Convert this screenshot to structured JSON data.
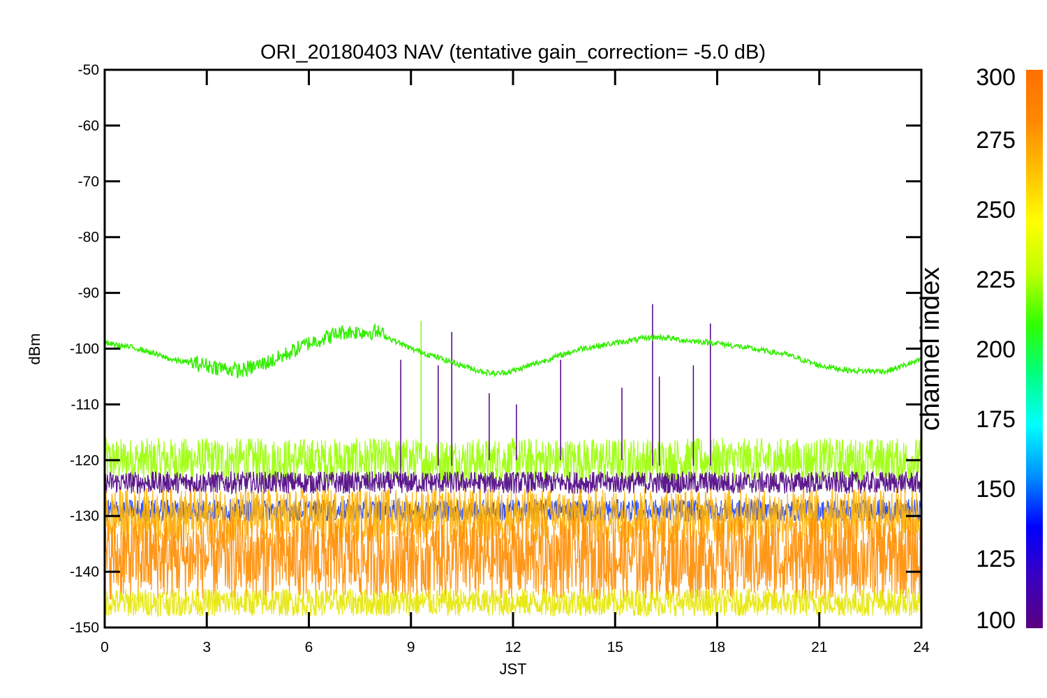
{
  "chart_data": {
    "type": "line",
    "title": "ORI_20180403 NAV (tentative gain_correction= -5.0 dB)",
    "xlabel": "JST",
    "ylabel": "dBm",
    "xlim": [
      0,
      24
    ],
    "ylim": [
      -150,
      -50
    ],
    "x_ticks": [
      0,
      3,
      6,
      9,
      12,
      15,
      18,
      21,
      24
    ],
    "y_ticks": [
      -50,
      -60,
      -70,
      -80,
      -90,
      -100,
      -110,
      -120,
      -130,
      -140,
      -150
    ],
    "grid": false,
    "colorbar": {
      "label": "channel index",
      "range": [
        100,
        300
      ],
      "ticks": [
        300,
        275,
        250,
        225,
        200,
        175,
        150,
        125,
        100
      ],
      "colormap": [
        "#5a0080",
        "#3a00c0",
        "#0000ff",
        "#0090ff",
        "#00ffff",
        "#00ff80",
        "#30ff00",
        "#c0ff00",
        "#ffff00",
        "#ffc000",
        "#ff8800",
        "#ff7000"
      ]
    },
    "series": [
      {
        "channel": 240,
        "color": "#33ee00",
        "x": [
          0,
          1,
          2,
          3,
          4,
          5,
          6,
          7,
          8,
          9,
          10,
          11,
          11.5,
          12,
          13,
          14,
          15,
          16,
          16.5,
          17,
          18,
          19,
          20,
          21,
          22,
          23,
          24
        ],
        "y": [
          -99,
          -100,
          -102,
          -103,
          -104,
          -102,
          -99,
          -97,
          -97,
          -100,
          -102,
          -104,
          -104.5,
          -104,
          -102,
          -100,
          -99,
          -98,
          -98,
          -98.5,
          -99,
          -100,
          -101,
          -103,
          -104,
          -104,
          -102
        ]
      },
      {
        "channel": 260,
        "color": "#99ff00",
        "band": [
          -124,
          -116
        ],
        "x": [
          0,
          24
        ]
      },
      {
        "channel": 110,
        "color": "#4b0082",
        "band": [
          -126,
          -122
        ],
        "x": [
          0,
          24
        ]
      },
      {
        "channel": 140,
        "color": "#1840ff",
        "band": [
          -131,
          -127
        ],
        "x": [
          0,
          24
        ]
      },
      {
        "channel": 280,
        "color": "#ffb000",
        "band": [
          -135,
          -125
        ],
        "x": [
          0,
          24
        ]
      },
      {
        "channel": 295,
        "color": "#ff8c00",
        "band": [
          -145,
          -130
        ],
        "x": [
          0,
          24
        ]
      },
      {
        "channel": 270,
        "color": "#e6e600",
        "band": [
          -148,
          -143
        ],
        "x": [
          0,
          24
        ]
      }
    ],
    "spikes": [
      {
        "x": 8.7,
        "top": -102,
        "bottom": -125,
        "color": "#4b0082"
      },
      {
        "x": 9.3,
        "top": -95,
        "bottom": -120,
        "color": "#7fff00"
      },
      {
        "x": 9.8,
        "top": -103,
        "bottom": -121,
        "color": "#4b0082"
      },
      {
        "x": 10.2,
        "top": -97,
        "bottom": -121,
        "color": "#4b0082"
      },
      {
        "x": 11.3,
        "top": -108,
        "bottom": -120,
        "color": "#4b0082"
      },
      {
        "x": 12.1,
        "top": -110,
        "bottom": -120,
        "color": "#4b0082"
      },
      {
        "x": 13.4,
        "top": -102,
        "bottom": -120,
        "color": "#4b0082"
      },
      {
        "x": 15.2,
        "top": -107,
        "bottom": -120,
        "color": "#4b0082"
      },
      {
        "x": 16.1,
        "top": -92,
        "bottom": -121,
        "color": "#4b0082"
      },
      {
        "x": 16.3,
        "top": -105,
        "bottom": -121,
        "color": "#4b0082"
      },
      {
        "x": 17.3,
        "top": -103,
        "bottom": -121,
        "color": "#4b0082"
      },
      {
        "x": 17.8,
        "top": -95.5,
        "bottom": -121,
        "color": "#4b0082"
      }
    ]
  }
}
